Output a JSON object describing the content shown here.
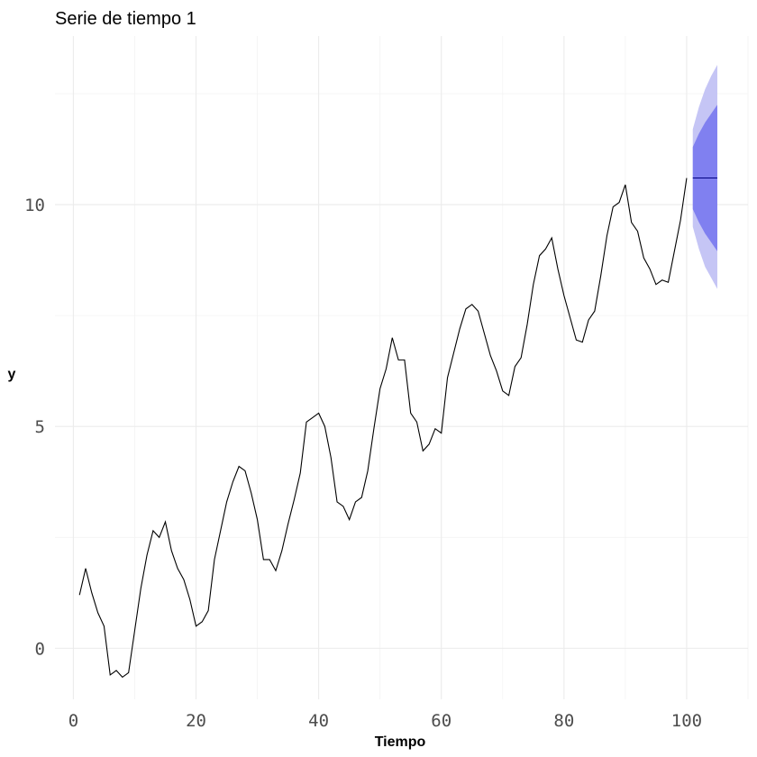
{
  "chart_data": {
    "type": "line",
    "title": "Serie de tiempo 1",
    "xlabel": "Tiempo",
    "ylabel": "y",
    "xlim": [
      -3,
      110
    ],
    "ylim": [
      -1.15,
      13.8
    ],
    "x_ticks": [
      0,
      20,
      40,
      60,
      80,
      100
    ],
    "x_tick_labels": [
      "0",
      "20",
      "40",
      "60",
      "80",
      "100"
    ],
    "y_ticks": [
      0,
      5,
      10
    ],
    "y_tick_labels": [
      "0",
      "5",
      "10"
    ],
    "grid": true,
    "series": [
      {
        "x": [
          1,
          2,
          3,
          4,
          5,
          6,
          7,
          8,
          9,
          10,
          11,
          12,
          13,
          14,
          15,
          16,
          17,
          18,
          19,
          20,
          21,
          22,
          23,
          24,
          25,
          26,
          27,
          28,
          29,
          30,
          31,
          32,
          33,
          34,
          35,
          36,
          37,
          38,
          39,
          40,
          41,
          42,
          43,
          44,
          45,
          46,
          47,
          48,
          49,
          50,
          51,
          52,
          53,
          54,
          55,
          56,
          57,
          58,
          59,
          60,
          61,
          62,
          63,
          64,
          65,
          66,
          67,
          68,
          69,
          70,
          71,
          72,
          73,
          74,
          75,
          76,
          77,
          78,
          79,
          80,
          81,
          82,
          83,
          84,
          85,
          86,
          87,
          88,
          89,
          90,
          91,
          92,
          93,
          94,
          95,
          96,
          97,
          98,
          99,
          100
        ],
        "values": [
          1.2,
          1.8,
          1.25,
          0.8,
          0.5,
          -0.6,
          -0.5,
          -0.65,
          -0.55,
          0.4,
          1.35,
          2.1,
          2.65,
          2.5,
          2.85,
          2.2,
          1.8,
          1.55,
          1.1,
          0.5,
          0.6,
          0.85,
          2.0,
          2.65,
          3.3,
          3.75,
          4.1,
          4.0,
          3.5,
          2.9,
          2.0,
          2.0,
          1.75,
          2.2,
          2.8,
          3.35,
          3.95,
          5.1,
          5.2,
          5.3,
          5.0,
          4.3,
          3.3,
          3.2,
          2.9,
          3.3,
          3.4,
          4.0,
          4.95,
          5.85,
          6.3,
          7.0,
          6.5,
          6.5,
          5.3,
          5.1,
          4.45,
          4.6,
          4.95,
          4.85,
          6.1,
          6.65,
          7.2,
          7.65,
          7.75,
          7.6,
          7.1,
          6.6,
          6.25,
          5.8,
          5.7,
          6.35,
          6.55,
          7.3,
          8.2,
          8.85,
          9.0,
          9.25,
          8.55,
          7.95,
          7.45,
          6.95,
          6.9,
          7.4,
          7.6,
          8.4,
          9.3,
          9.95,
          10.05,
          10.45,
          9.6,
          9.4,
          8.8,
          8.55,
          8.2,
          8.3,
          8.25,
          8.95,
          9.65,
          10.6
        ]
      }
    ],
    "forecast": {
      "x": [
        101,
        102,
        103,
        104,
        105
      ],
      "point": [
        10.6,
        10.6,
        10.6,
        10.6,
        10.6
      ],
      "lo80": [
        9.9,
        9.6,
        9.35,
        9.15,
        8.95
      ],
      "hi80": [
        11.3,
        11.6,
        11.85,
        12.05,
        12.25
      ],
      "lo95": [
        9.5,
        9.0,
        8.6,
        8.35,
        8.1
      ],
      "hi95": [
        11.7,
        12.2,
        12.6,
        12.9,
        13.15
      ]
    },
    "colors": {
      "line": "#000000",
      "band80": "#8080f0",
      "band95": "#c5c5f5",
      "forecast_line": "#000080",
      "grid": "#ebebeb"
    }
  }
}
